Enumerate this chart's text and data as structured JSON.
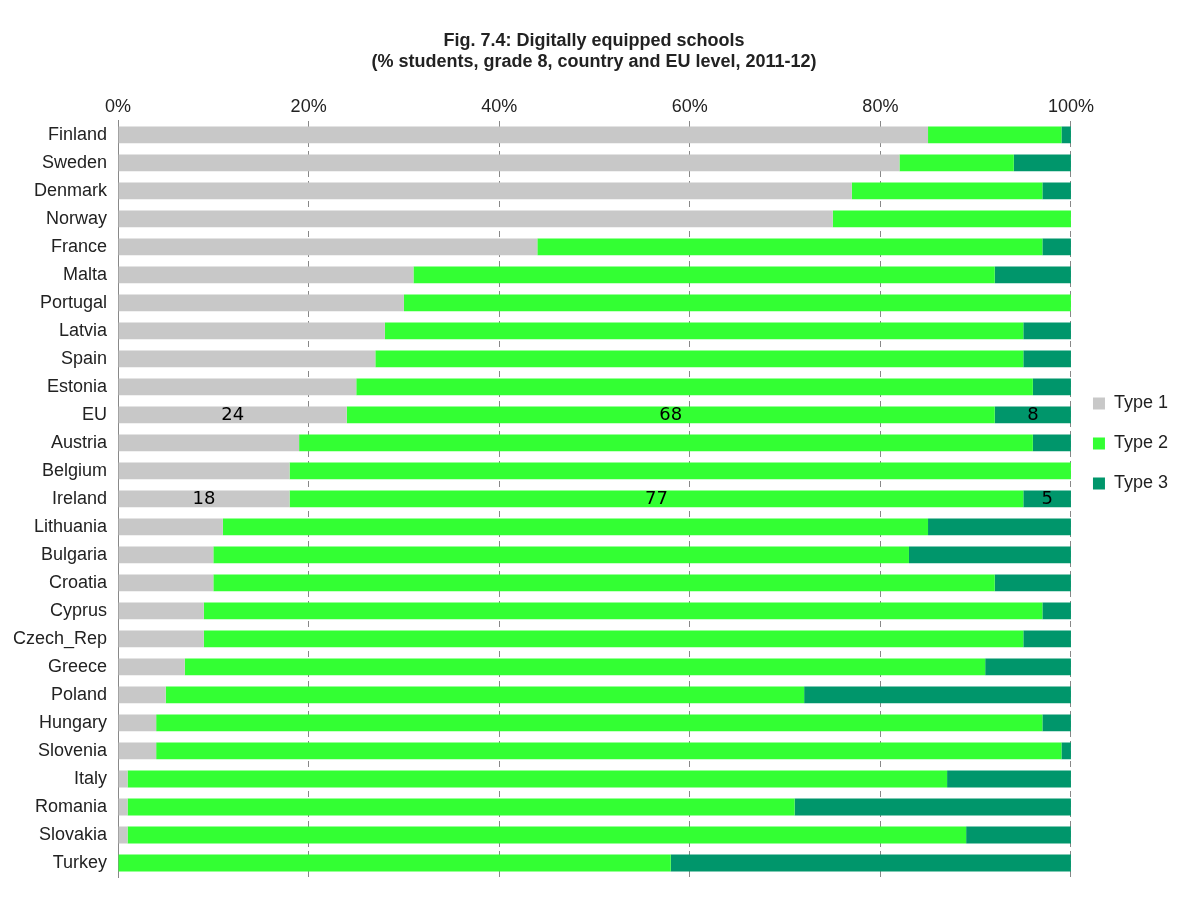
{
  "chart_data": {
    "type": "bar",
    "orientation": "horizontal",
    "stacked": true,
    "title": "Fig. 7.4: Digitally equipped schools",
    "subtitle": "(% students, grade 8, country and EU level, 2011-12)",
    "categories": [
      "Finland",
      "Sweden",
      "Denmark",
      "Norway",
      "France",
      "Malta",
      "Portugal",
      "Latvia",
      "Spain",
      "Estonia",
      "EU",
      "Austria",
      "Belgium",
      "Ireland",
      "Lithuania",
      "Bulgaria",
      "Croatia",
      "Cyprus",
      "Czech_Rep",
      "Greece",
      "Poland",
      "Hungary",
      "Slovenia",
      "Italy",
      "Romania",
      "Slovakia",
      "Turkey"
    ],
    "series": [
      {
        "name": "Type 1",
        "color": "#c8c8c8",
        "values": [
          85,
          82,
          77,
          75,
          44,
          31,
          30,
          28,
          27,
          25,
          24,
          19,
          18,
          18,
          11,
          10,
          10,
          9,
          9,
          7,
          5,
          4,
          4,
          1,
          1,
          1,
          0
        ],
        "value_labels": [
          null,
          null,
          null,
          null,
          null,
          null,
          null,
          null,
          null,
          null,
          "24",
          null,
          null,
          "18",
          null,
          null,
          null,
          null,
          null,
          null,
          null,
          null,
          null,
          null,
          null,
          null,
          null
        ]
      },
      {
        "name": "Type 2",
        "color": "#33ff33",
        "values": [
          14,
          12,
          20,
          25,
          53,
          61,
          70,
          67,
          68,
          71,
          68,
          77,
          82,
          77,
          74,
          73,
          82,
          88,
          86,
          84,
          67,
          93,
          95,
          86,
          70,
          88,
          58
        ],
        "value_labels": [
          null,
          null,
          null,
          null,
          null,
          null,
          null,
          null,
          null,
          null,
          "68",
          null,
          null,
          "77",
          null,
          null,
          null,
          null,
          null,
          null,
          null,
          null,
          null,
          null,
          null,
          null,
          null
        ]
      },
      {
        "name": "Type 3",
        "color": "#00966b",
        "values": [
          1,
          6,
          3,
          0,
          3,
          8,
          0,
          5,
          5,
          4,
          8,
          4,
          0,
          5,
          15,
          17,
          8,
          3,
          5,
          9,
          28,
          3,
          1,
          13,
          29,
          11,
          42
        ],
        "value_labels": [
          null,
          null,
          null,
          null,
          null,
          null,
          null,
          null,
          null,
          null,
          "8",
          null,
          null,
          "5",
          null,
          null,
          null,
          null,
          null,
          null,
          null,
          null,
          null,
          null,
          null,
          null,
          null
        ]
      }
    ],
    "xlim": [
      0,
      100
    ],
    "xticks": [
      {
        "value": 0,
        "label": "0%"
      },
      {
        "value": 20,
        "label": "20%"
      },
      {
        "value": 40,
        "label": "40%"
      },
      {
        "value": 60,
        "label": "60%"
      },
      {
        "value": 80,
        "label": "80%"
      },
      {
        "value": 100,
        "label": "100%"
      }
    ],
    "grid": "x",
    "legend": "right"
  }
}
